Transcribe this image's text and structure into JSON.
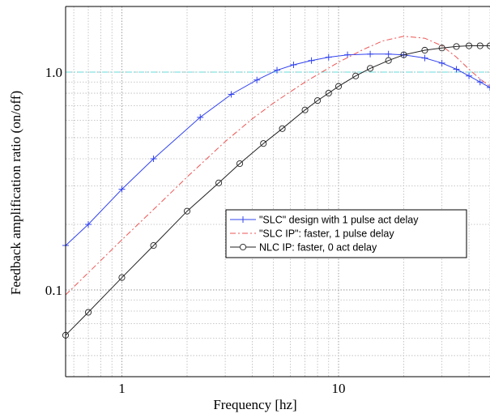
{
  "chart_data": {
    "type": "line",
    "title": "",
    "xlabel": "Frequency [hz]",
    "ylabel": "Feedback amplification ratio (on/off)",
    "xscale": "log",
    "yscale": "log",
    "xlim": [
      0.55,
      50
    ],
    "ylim": [
      0.04,
      2.0
    ],
    "x_tick_labels": [
      {
        "value": 1,
        "label": "1"
      },
      {
        "value": 10,
        "label": "10"
      }
    ],
    "y_tick_labels": [
      {
        "value": 0.1,
        "label": "0.1"
      },
      {
        "value": 1.0,
        "label": "1.0"
      }
    ],
    "grid": true,
    "grid_style": "dotted",
    "legend_position": "center-right",
    "reference_line": {
      "y": 1.0,
      "color": "#66dddd",
      "style": "dash-dot"
    },
    "series": [
      {
        "name": "\"SLC\" design with 1 pulse act delay",
        "color": "#3344ee",
        "line_style": "solid",
        "marker": "plus",
        "x": [
          0.55,
          0.7,
          1.0,
          1.4,
          2.3,
          3.2,
          4.2,
          5.2,
          6.2,
          7.5,
          9.0,
          11.0,
          14.0,
          17.0,
          20.0,
          25.0,
          30.0,
          35.0,
          40.0,
          45.0,
          50.0
        ],
        "y": [
          0.16,
          0.2,
          0.29,
          0.4,
          0.62,
          0.79,
          0.92,
          1.02,
          1.08,
          1.13,
          1.17,
          1.2,
          1.21,
          1.21,
          1.2,
          1.16,
          1.1,
          1.03,
          0.96,
          0.9,
          0.85
        ]
      },
      {
        "name": "\"SLC IP\": faster, 1 pulse delay",
        "color": "#ee5555",
        "line_style": "dash-dot",
        "marker": "none",
        "x": [
          0.55,
          0.7,
          1.0,
          1.5,
          2.0,
          3.0,
          4.0,
          5.0,
          7.0,
          10.0,
          13.0,
          16.0,
          20.0,
          25.0,
          30.0,
          35.0,
          40.0,
          45.0,
          50.0
        ],
        "y": [
          0.095,
          0.12,
          0.17,
          0.25,
          0.33,
          0.48,
          0.61,
          0.72,
          0.9,
          1.11,
          1.27,
          1.39,
          1.46,
          1.43,
          1.32,
          1.17,
          1.03,
          0.93,
          0.86
        ]
      },
      {
        "name": "NLC IP: faster, 0 act delay",
        "color": "#222222",
        "line_style": "solid",
        "marker": "circle",
        "x": [
          0.55,
          0.7,
          1.0,
          1.4,
          2.0,
          2.8,
          3.5,
          4.5,
          5.5,
          7.0,
          8.0,
          9.0,
          10.0,
          12.0,
          14.0,
          17.0,
          20.0,
          25.0,
          30.0,
          35.0,
          40.0,
          45.0,
          50.0
        ],
        "y": [
          0.062,
          0.079,
          0.114,
          0.16,
          0.23,
          0.31,
          0.38,
          0.47,
          0.55,
          0.67,
          0.74,
          0.8,
          0.86,
          0.96,
          1.04,
          1.13,
          1.2,
          1.26,
          1.29,
          1.31,
          1.32,
          1.32,
          1.32
        ]
      }
    ]
  }
}
